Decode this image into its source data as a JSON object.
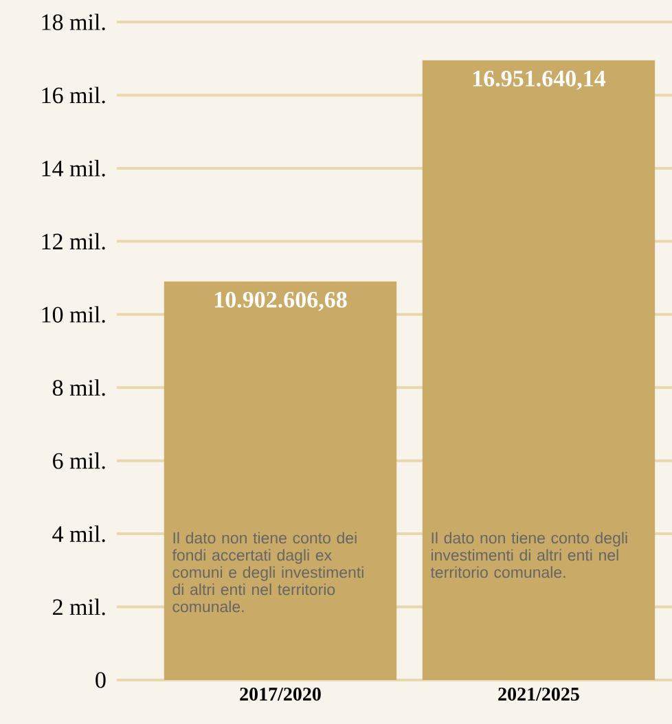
{
  "chart_data": {
    "type": "bar",
    "categories": [
      "2017/2020",
      "2021/2025"
    ],
    "values": [
      10.90260668,
      16.95164014
    ],
    "color": "#c9aa66",
    "ylim": [
      0,
      18
    ],
    "yticks": [
      0,
      {
        "value": 2,
        "label": "2 mil."
      },
      {
        "value": 4,
        "label": "4 mil."
      },
      {
        "value": 6,
        "label": "6 mil."
      },
      {
        "value": 8,
        "label": "8 mil."
      },
      {
        "value": 10,
        "label": "10 mil."
      },
      {
        "value": 12,
        "label": "12 mil."
      },
      {
        "value": 14,
        "label": "14 mil."
      },
      {
        "value": 16,
        "label": "16 mil."
      },
      {
        "value": 18,
        "label": "18 mil."
      }
    ],
    "grid": "y",
    "annotations": [
      {
        "text": "10.902.606,68",
        "x": "2017/2020",
        "y": 10.90260668
      },
      {
        "text": "16.951.640,14",
        "x": "2021/2025",
        "y": 16.95164014
      },
      "Il dato non tiene conto dei fondi accertati dagli ex comuni e degli investimenti di altri enti nel territorio comunale.",
      "Il dato non tiene conto degli investimenti di altri enti nel territorio comunale."
    ]
  }
}
